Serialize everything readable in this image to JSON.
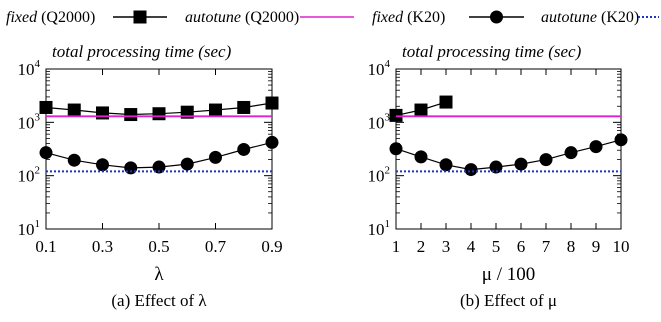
{
  "legend": [
    {
      "label_italic": "fixed",
      "label_rest": "(Q2000)",
      "color": "#000000",
      "marker": "square",
      "dash": ""
    },
    {
      "label_italic": "autotune",
      "label_rest": "(Q2000)",
      "color": "#e020d0",
      "marker": "none",
      "dash": ""
    },
    {
      "label_italic": "fixed",
      "label_rest": "(K20)",
      "color": "#000000",
      "marker": "circle",
      "dash": ""
    },
    {
      "label_italic": "autotune",
      "label_rest": "(K20)",
      "color": "#1c34c8",
      "marker": "none",
      "dash": "dotted"
    }
  ],
  "chart_data": [
    {
      "type": "line",
      "annotation": "total processing time (sec)",
      "xlabel": "λ",
      "caption": "(a) Effect of λ",
      "y_scale": "log",
      "ylim": [
        10,
        10000
      ],
      "y_ticks": [
        "10",
        "10",
        "10",
        "10"
      ],
      "y_tick_exponents": [
        "1",
        "2",
        "3",
        "4"
      ],
      "y_tick_values": [
        10,
        100,
        1000,
        10000
      ],
      "xlim": [
        0.1,
        0.9
      ],
      "x_ticks": [
        "0.1",
        "0.3",
        "0.5",
        "0.7",
        "0.9"
      ],
      "x_tick_values": [
        0.1,
        0.3,
        0.5,
        0.7,
        0.9
      ],
      "series": [
        {
          "name": "fixed (Q2000)",
          "marker": "square",
          "color": "#000000",
          "x": [
            0.1,
            0.2,
            0.3,
            0.4,
            0.5,
            0.6,
            0.7,
            0.8,
            0.9
          ],
          "y": [
            1900,
            1700,
            1500,
            1400,
            1450,
            1550,
            1700,
            1900,
            2300
          ]
        },
        {
          "name": "autotune (Q2000)",
          "marker": "none",
          "color": "#e020d0",
          "x": [
            0.1,
            0.9
          ],
          "y": [
            1300,
            1300
          ]
        },
        {
          "name": "fixed (K20)",
          "marker": "circle",
          "color": "#000000",
          "x": [
            0.1,
            0.2,
            0.3,
            0.4,
            0.5,
            0.6,
            0.7,
            0.8,
            0.9
          ],
          "y": [
            270,
            195,
            160,
            140,
            145,
            165,
            220,
            310,
            420
          ]
        },
        {
          "name": "autotune (K20)",
          "marker": "none",
          "color": "#1c34c8",
          "dash": "dotted",
          "x": [
            0.1,
            0.9
          ],
          "y": [
            120,
            120
          ]
        }
      ]
    },
    {
      "type": "line",
      "annotation": "total processing time (sec)",
      "xlabel": "μ / 100",
      "caption": "(b) Effect of μ",
      "y_scale": "log",
      "ylim": [
        10,
        10000
      ],
      "y_ticks": [
        "10",
        "10",
        "10",
        "10"
      ],
      "y_tick_exponents": [
        "1",
        "2",
        "3",
        "4"
      ],
      "y_tick_values": [
        10,
        100,
        1000,
        10000
      ],
      "xlim": [
        1,
        10
      ],
      "x_ticks": [
        "1",
        "2",
        "3",
        "4",
        "5",
        "6",
        "7",
        "8",
        "9",
        "10"
      ],
      "x_tick_values": [
        1,
        2,
        3,
        4,
        5,
        6,
        7,
        8,
        9,
        10
      ],
      "series": [
        {
          "name": "fixed (Q2000)",
          "marker": "square",
          "color": "#000000",
          "x": [
            1,
            2,
            3
          ],
          "y": [
            1350,
            1700,
            2400
          ]
        },
        {
          "name": "autotune (Q2000)",
          "marker": "none",
          "color": "#e020d0",
          "x": [
            1,
            10
          ],
          "y": [
            1300,
            1300
          ]
        },
        {
          "name": "fixed (K20)",
          "marker": "circle",
          "color": "#000000",
          "x": [
            1,
            2,
            3,
            4,
            5,
            6,
            7,
            8,
            9,
            10
          ],
          "y": [
            320,
            225,
            160,
            130,
            145,
            165,
            200,
            270,
            350,
            470
          ]
        },
        {
          "name": "autotune (K20)",
          "marker": "none",
          "color": "#1c34c8",
          "dash": "dotted",
          "x": [
            1,
            10
          ],
          "y": [
            120,
            120
          ]
        }
      ]
    }
  ]
}
